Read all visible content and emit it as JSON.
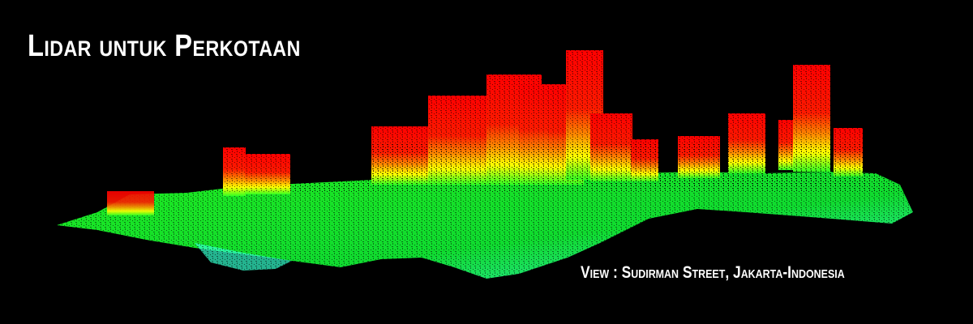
{
  "title": "Lidar untuk Perkotaan",
  "caption": "View : Sudirman Street, Jakarta-Indonesia",
  "colors": {
    "background": "#000000",
    "ground_cyan": "#33ffcc",
    "ground_green": "#22ff22",
    "mid_yellow": "#ffff00",
    "mid_orange": "#ff8800",
    "top_red": "#ff0000",
    "text": "#ffffff"
  }
}
